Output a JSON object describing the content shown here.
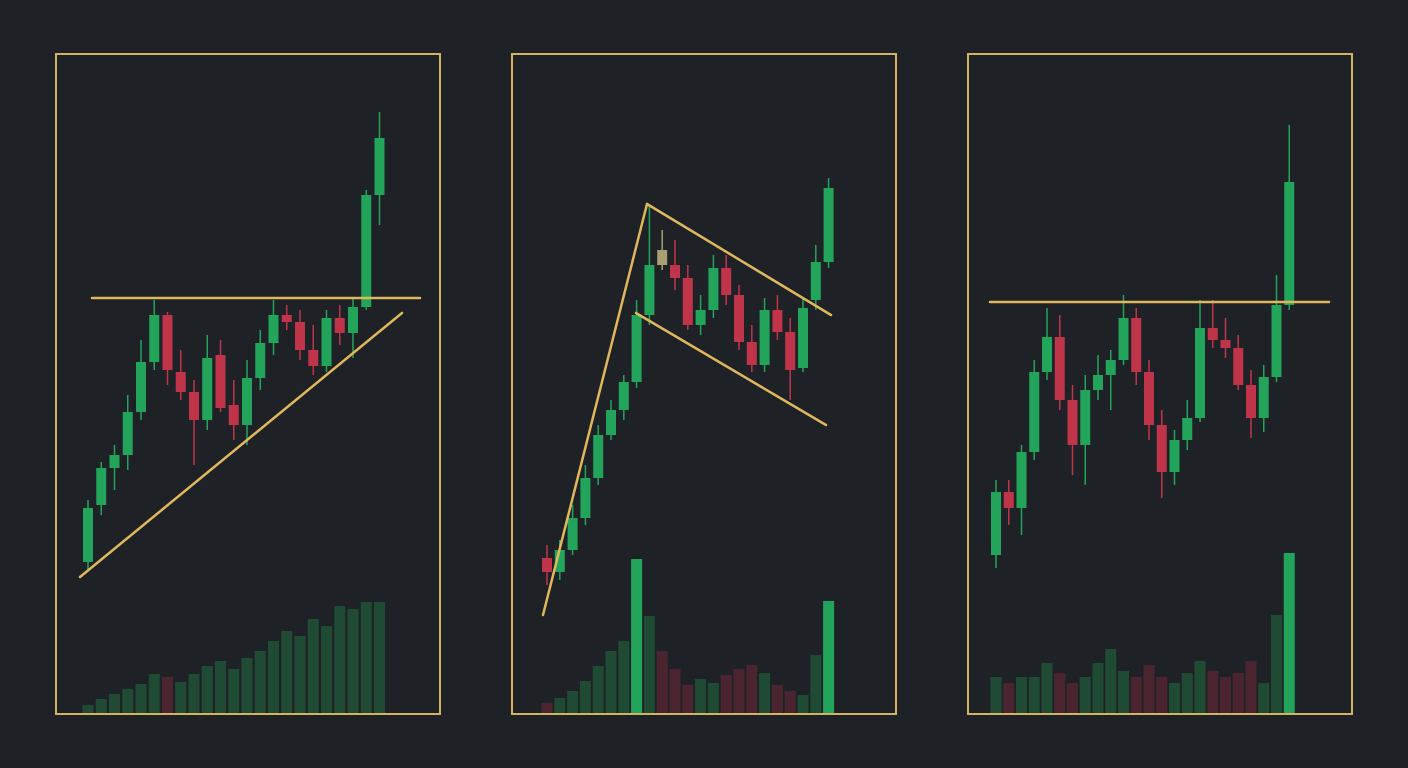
{
  "chart_data": [
    {
      "type": "candlestick",
      "ylim": [
        0,
        658
      ],
      "y2lim": [
        0,
        658
      ],
      "open": [
        151,
        208,
        245,
        258,
        301,
        351,
        398,
        341,
        321,
        293,
        358,
        308,
        288,
        335,
        370,
        398,
        391,
        363,
        347,
        395,
        380,
        406,
        518
      ],
      "high": [
        213,
        251,
        268,
        318,
        373,
        413,
        401,
        363,
        333,
        378,
        373,
        333,
        353,
        383,
        413,
        408,
        403,
        388,
        403,
        408,
        415,
        523,
        601
      ],
      "low": [
        143,
        198,
        223,
        243,
        293,
        343,
        328,
        313,
        248,
        283,
        301,
        273,
        268,
        323,
        358,
        383,
        353,
        338,
        341,
        368,
        355,
        403,
        488
      ],
      "close": [
        205,
        245,
        258,
        301,
        351,
        398,
        343,
        321,
        293,
        355,
        305,
        288,
        335,
        370,
        398,
        391,
        363,
        347,
        395,
        380,
        406,
        518,
        575
      ],
      "colors": [
        "#22a55b",
        "#22a55b",
        "#22a55b",
        "#22a55b",
        "#22a55b",
        "#22a55b",
        "#c0344a",
        "#c0344a",
        "#c0344a",
        "#22a55b",
        "#c0344a",
        "#c0344a",
        "#22a55b",
        "#22a55b",
        "#22a55b",
        "#c0344a",
        "#c0344a",
        "#c0344a",
        "#22a55b",
        "#c0344a",
        "#22a55b",
        "#22a55b",
        "#22a55b"
      ],
      "volume": [
        8,
        14,
        19,
        24,
        29,
        39,
        36,
        31,
        39,
        47,
        52,
        44,
        55,
        62,
        72,
        82,
        77,
        94,
        87,
        107,
        104,
        111,
        111
      ],
      "volume_colors": [
        "#1f4a33",
        "#1f4a33",
        "#1f4a33",
        "#1f4a33",
        "#1f4a33",
        "#1f4a33",
        "#4a2530",
        "#1f4a33",
        "#1f4a33",
        "#1f4a33",
        "#1f4a33",
        "#1f4a33",
        "#1f4a33",
        "#1f4a33",
        "#1f4a33",
        "#1f4a33",
        "#1f4a33",
        "#1f4a33",
        "#1f4a33",
        "#1f4a33",
        "#1f4a33",
        "#1f4a33",
        "#1f4a33"
      ]
    },
    {
      "type": "candlestick",
      "ylim": [
        0,
        658
      ],
      "y2lim": [
        0,
        658
      ],
      "open": [
        155,
        141,
        163,
        195,
        235,
        278,
        303,
        331,
        398,
        448,
        448,
        435,
        388,
        403,
        445,
        418,
        371,
        348,
        403,
        381,
        345,
        413,
        451
      ],
      "high": [
        168,
        173,
        208,
        248,
        288,
        313,
        338,
        413,
        508,
        483,
        473,
        448,
        418,
        458,
        458,
        428,
        388,
        415,
        418,
        395,
        415,
        468,
        535
      ],
      "low": [
        128,
        133,
        158,
        188,
        228,
        273,
        293,
        325,
        388,
        443,
        423,
        383,
        378,
        395,
        408,
        363,
        341,
        341,
        373,
        313,
        341,
        403,
        445
      ],
      "close": [
        141,
        163,
        195,
        235,
        278,
        303,
        331,
        398,
        448,
        463,
        435,
        388,
        403,
        445,
        418,
        371,
        348,
        403,
        381,
        343,
        405,
        451,
        525
      ],
      "colors": [
        "#c0344a",
        "#22a55b",
        "#22a55b",
        "#22a55b",
        "#22a55b",
        "#22a55b",
        "#22a55b",
        "#22a55b",
        "#22a55b",
        "#a8a070",
        "#c0344a",
        "#c0344a",
        "#22a55b",
        "#22a55b",
        "#c0344a",
        "#c0344a",
        "#c0344a",
        "#22a55b",
        "#c0344a",
        "#c0344a",
        "#22a55b",
        "#22a55b",
        "#22a55b"
      ],
      "volume": [
        10,
        15,
        22,
        32,
        47,
        62,
        72,
        154,
        97,
        62,
        44,
        28,
        34,
        30,
        38,
        44,
        48,
        40,
        28,
        22,
        18,
        58,
        112
      ],
      "volume_colors": [
        "#4a2530",
        "#1f4a33",
        "#1f4a33",
        "#1f4a33",
        "#1f4a33",
        "#1f4a33",
        "#1f4a33",
        "#22a55b",
        "#1f4a33",
        "#4a2530",
        "#4a2530",
        "#4a2530",
        "#1f4a33",
        "#1f4a33",
        "#4a2530",
        "#4a2530",
        "#4a2530",
        "#1f4a33",
        "#4a2530",
        "#4a2530",
        "#1f4a33",
        "#1f4a33",
        "#22a55b"
      ]
    },
    {
      "type": "candlestick",
      "ylim": [
        0,
        658
      ],
      "y2lim": [
        0,
        658
      ],
      "open": [
        158,
        221,
        205,
        261,
        341,
        376,
        313,
        268,
        323,
        338,
        353,
        395,
        341,
        288,
        241,
        273,
        295,
        385,
        373,
        365,
        328,
        295,
        336,
        408
      ],
      "high": [
        233,
        233,
        268,
        353,
        405,
        398,
        328,
        338,
        358,
        363,
        418,
        405,
        353,
        303,
        283,
        313,
        413,
        413,
        395,
        378,
        343,
        348,
        438,
        588
      ],
      "low": [
        145,
        188,
        178,
        253,
        333,
        303,
        238,
        228,
        313,
        303,
        348,
        328,
        273,
        215,
        228,
        263,
        291,
        365,
        355,
        323,
        275,
        281,
        331,
        403
      ],
      "close": [
        221,
        205,
        261,
        341,
        376,
        313,
        268,
        323,
        338,
        353,
        395,
        341,
        288,
        241,
        273,
        295,
        385,
        373,
        365,
        328,
        295,
        336,
        408,
        531
      ],
      "colors": [
        "#22a55b",
        "#c0344a",
        "#22a55b",
        "#22a55b",
        "#22a55b",
        "#c0344a",
        "#c0344a",
        "#22a55b",
        "#22a55b",
        "#22a55b",
        "#22a55b",
        "#c0344a",
        "#c0344a",
        "#c0344a",
        "#22a55b",
        "#22a55b",
        "#22a55b",
        "#c0344a",
        "#c0344a",
        "#c0344a",
        "#c0344a",
        "#22a55b",
        "#22a55b",
        "#22a55b"
      ],
      "volume": [
        36,
        30,
        36,
        36,
        50,
        40,
        30,
        36,
        50,
        64,
        42,
        36,
        48,
        36,
        30,
        40,
        52,
        42,
        36,
        40,
        52,
        30,
        98,
        160
      ],
      "volume_colors": [
        "#1f4a33",
        "#4a2530",
        "#1f4a33",
        "#1f4a33",
        "#1f4a33",
        "#4a2530",
        "#4a2530",
        "#1f4a33",
        "#1f4a33",
        "#1f4a33",
        "#1f4a33",
        "#4a2530",
        "#4a2530",
        "#4a2530",
        "#1f4a33",
        "#1f4a33",
        "#1f4a33",
        "#4a2530",
        "#4a2530",
        "#4a2530",
        "#4a2530",
        "#1f4a33",
        "#1f4a33",
        "#22a55b"
      ]
    }
  ]
}
